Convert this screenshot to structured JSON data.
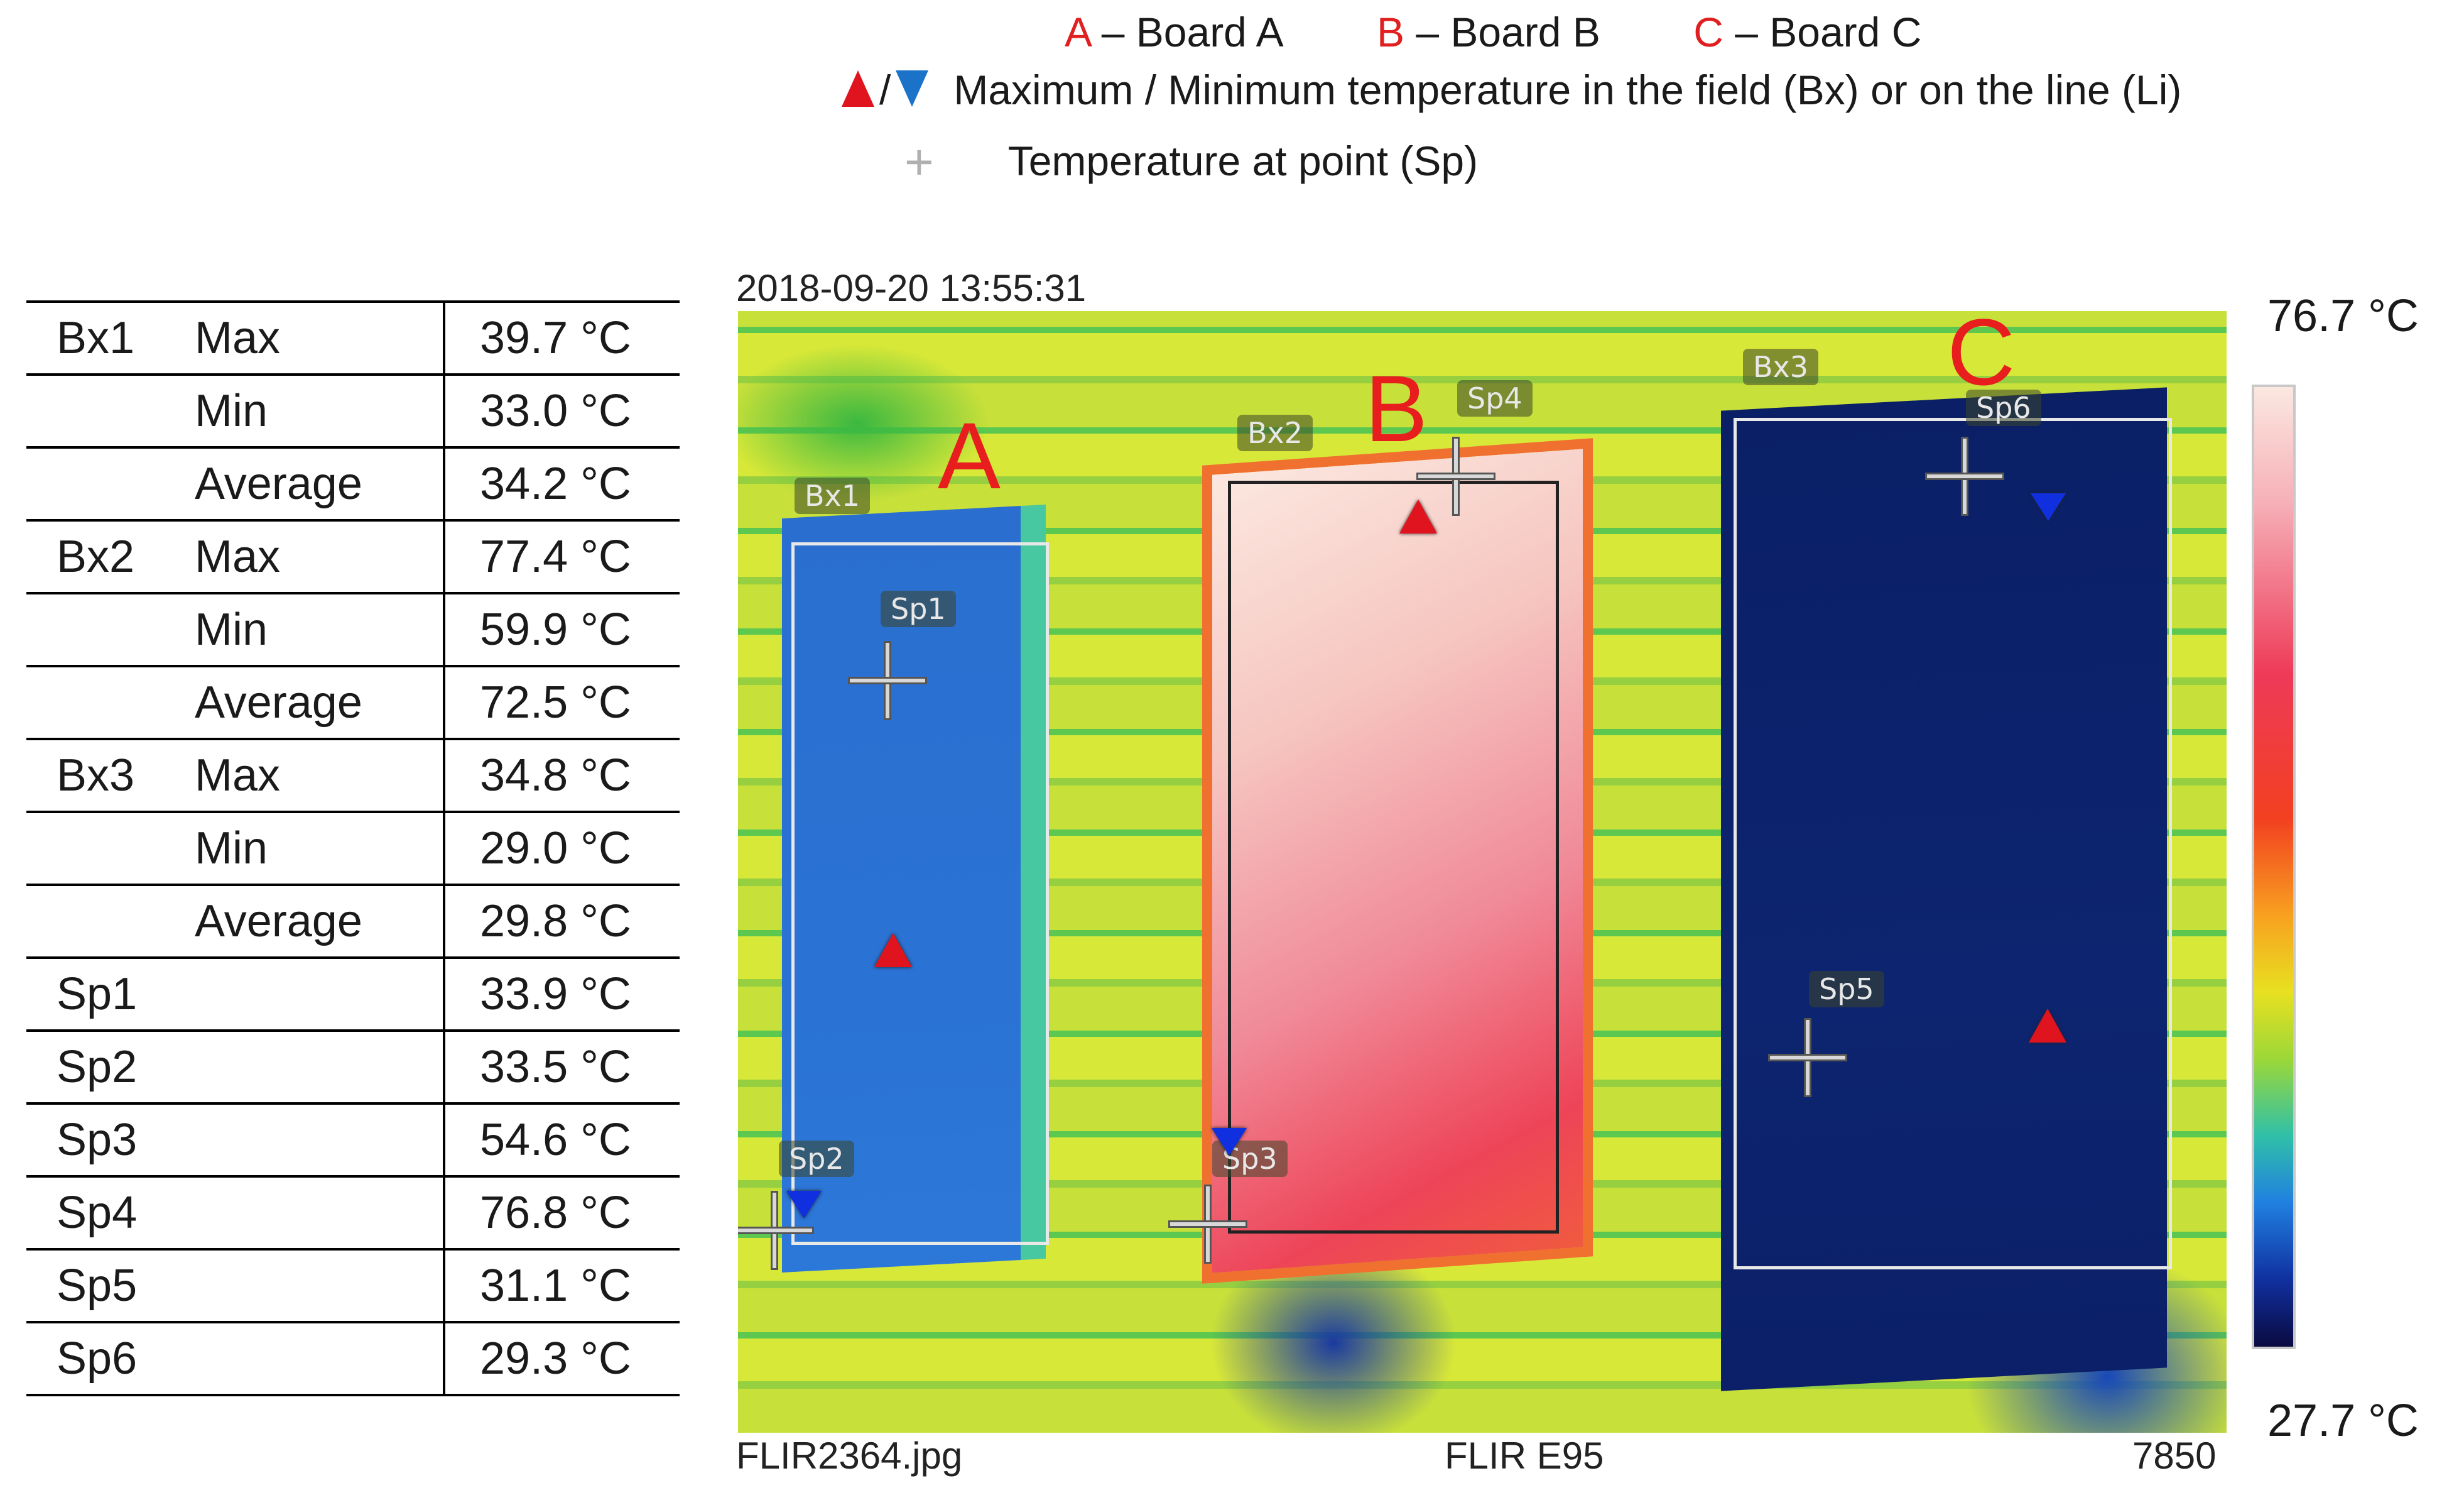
{
  "legend": {
    "boards": [
      {
        "letter": "A",
        "label": " – Board A"
      },
      {
        "letter": "B",
        "label": " – Board B"
      },
      {
        "letter": "C",
        "label": " – Board C"
      }
    ],
    "maxmin_text": "Maximum / Minimum temperature in the field (Bx) or on the line (Li)",
    "slash": "/",
    "point_text": "Temperature at point (Sp)",
    "plus": "+"
  },
  "table": [
    {
      "name": "Bx1",
      "stat": "Max",
      "value": "39.7 °C"
    },
    {
      "name": "",
      "stat": "Min",
      "value": "33.0 °C"
    },
    {
      "name": "",
      "stat": "Average",
      "value": "34.2 °C"
    },
    {
      "name": "Bx2",
      "stat": "Max",
      "value": "77.4 °C"
    },
    {
      "name": "",
      "stat": "Min",
      "value": "59.9 °C"
    },
    {
      "name": "",
      "stat": "Average",
      "value": "72.5 °C"
    },
    {
      "name": "Bx3",
      "stat": "Max",
      "value": "34.8 °C"
    },
    {
      "name": "",
      "stat": "Min",
      "value": "29.0 °C"
    },
    {
      "name": "",
      "stat": "Average",
      "value": "29.8 °C"
    },
    {
      "name": "Sp1",
      "stat": "",
      "value": "33.9 °C"
    },
    {
      "name": "Sp2",
      "stat": "",
      "value": "33.5 °C"
    },
    {
      "name": "Sp3",
      "stat": "",
      "value": "54.6 °C"
    },
    {
      "name": "Sp4",
      "stat": "",
      "value": "76.8 °C"
    },
    {
      "name": "Sp5",
      "stat": "",
      "value": "31.1 °C"
    },
    {
      "name": "Sp6",
      "stat": "",
      "value": "29.3 °C"
    }
  ],
  "thermal": {
    "timestamp": "2018-09-20 13:55:31",
    "filename": "FLIR2364.jpg",
    "camera": "FLIR E95",
    "code": "7850",
    "boards": {
      "a": "A",
      "b": "B",
      "c": "C"
    },
    "tags": {
      "bx1": "Bx1",
      "bx2": "Bx2",
      "bx3": "Bx3",
      "sp1": "Sp1",
      "sp2": "Sp2",
      "sp3": "Sp3",
      "sp4": "Sp4",
      "sp5": "Sp5",
      "sp6": "Sp6"
    }
  },
  "scale": {
    "max": "76.7 °C",
    "min": "27.7 °C"
  }
}
